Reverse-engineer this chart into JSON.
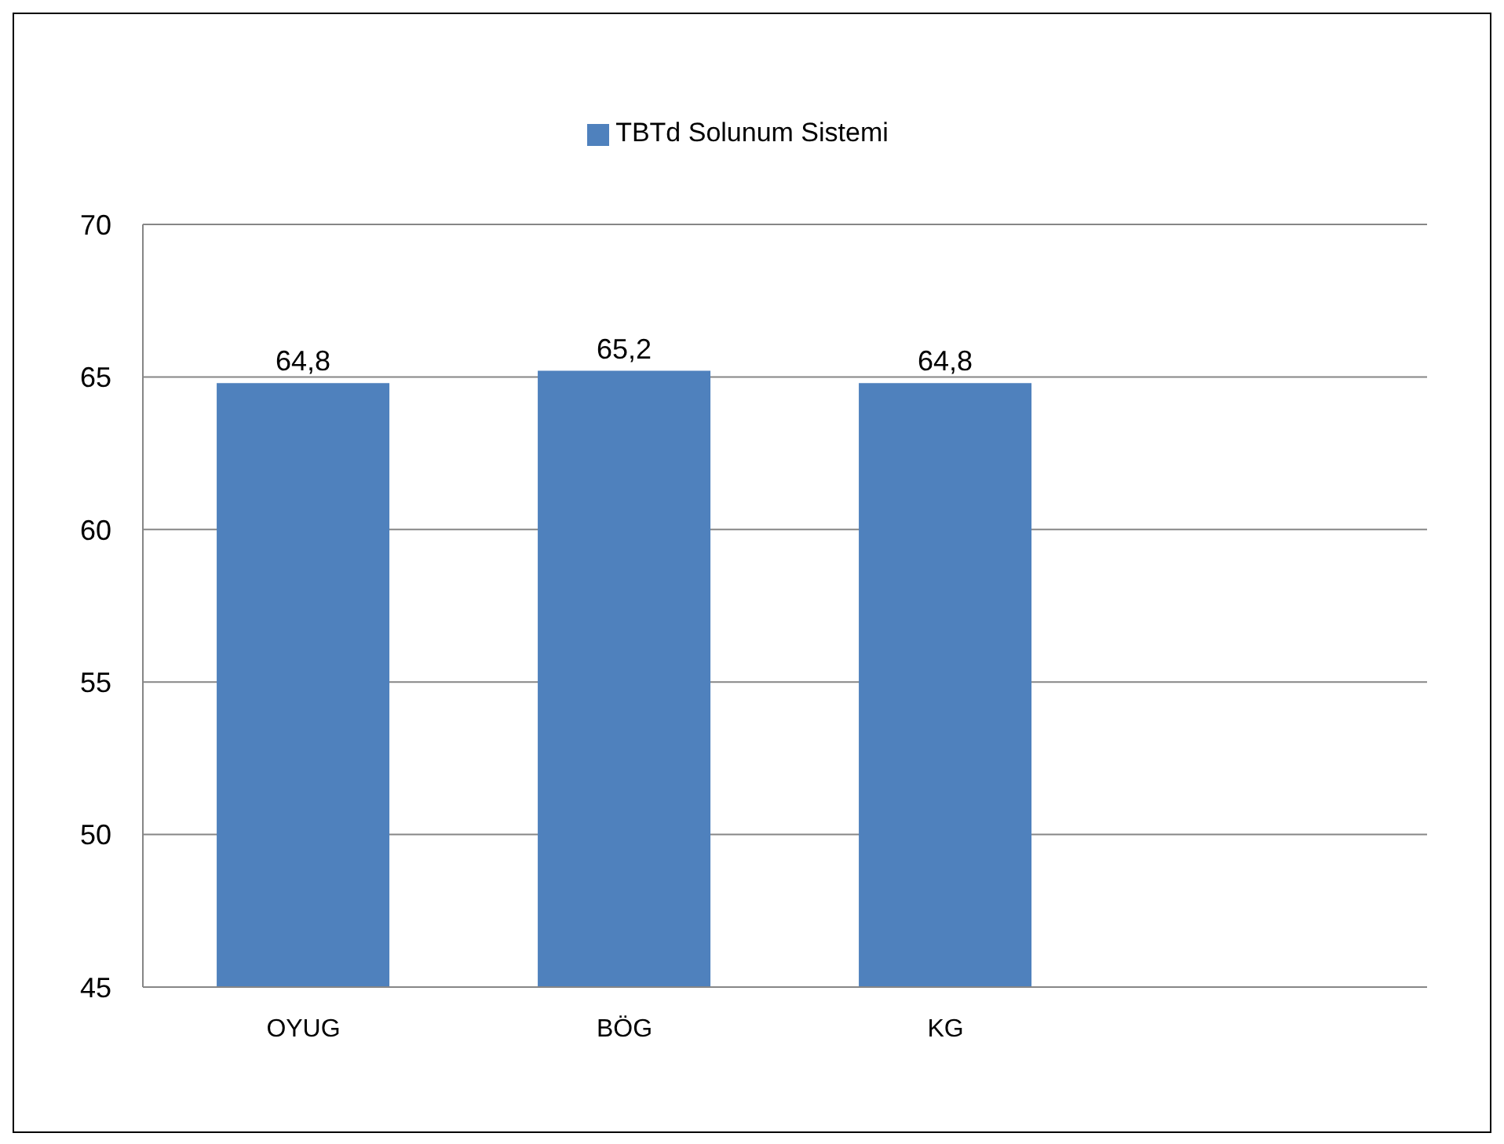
{
  "chart_data": {
    "type": "bar",
    "categories": [
      "OYUG",
      "BÖG",
      "KG",
      null
    ],
    "series": [
      {
        "name": "TBTd Solunum Sistemi",
        "color": "#4f81bd",
        "values": [
          64.8,
          65.2,
          64.8,
          null
        ],
        "value_labels": [
          "64,8",
          "65,2",
          "64,8",
          null
        ]
      }
    ],
    "ylim": [
      45,
      70
    ],
    "yticks": [
      45,
      50,
      55,
      60,
      65,
      70
    ],
    "grid": "y",
    "legend": "top"
  }
}
